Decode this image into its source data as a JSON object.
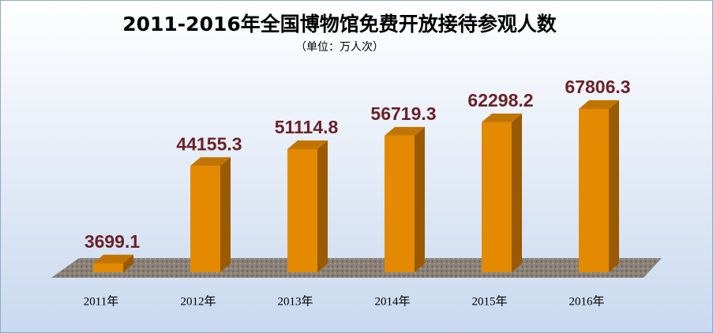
{
  "chart_data": {
    "type": "bar3d",
    "title": "2011-2016年全国博物馆免费开放接待参观人数",
    "subtitle": "（单位：万人次）",
    "categories": [
      "2011年",
      "2012年",
      "2013年",
      "2014年",
      "2015年",
      "2016年"
    ],
    "values": [
      3699.1,
      44155.3,
      51114.8,
      56719.3,
      62298.2,
      67806.3
    ],
    "color": "#e38a00"
  }
}
